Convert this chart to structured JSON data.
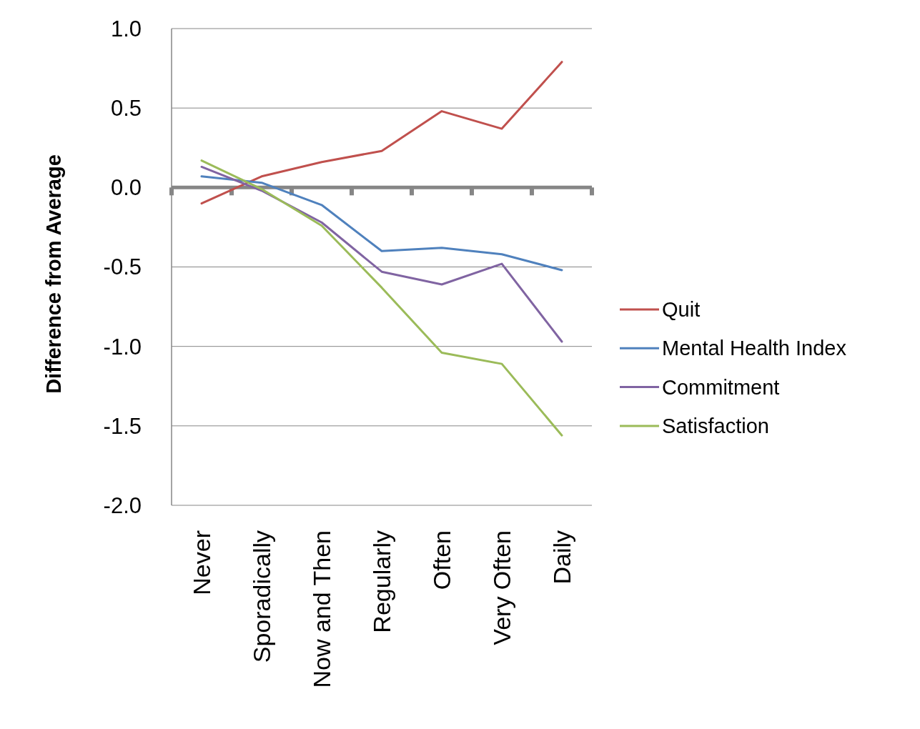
{
  "chart_data": {
    "type": "line",
    "ylabel": "Difference from Average",
    "categories": [
      "Never",
      "Sporadically",
      "Now and Then",
      "Regularly",
      "Often",
      "Very Often",
      "Daily"
    ],
    "series": [
      {
        "name": "Quit",
        "color": "#c0504d",
        "values": [
          -0.1,
          0.07,
          0.16,
          0.23,
          0.48,
          0.37,
          0.79
        ]
      },
      {
        "name": "Mental Health Index",
        "color": "#4f81bd",
        "values": [
          0.07,
          0.03,
          -0.11,
          -0.4,
          -0.38,
          -0.42,
          -0.52
        ]
      },
      {
        "name": "Commitment",
        "color": "#8064a2",
        "values": [
          0.13,
          -0.02,
          -0.22,
          -0.53,
          -0.61,
          -0.48,
          -0.97
        ]
      },
      {
        "name": "Satisfaction",
        "color": "#9bbb59",
        "values": [
          0.17,
          -0.01,
          -0.24,
          -0.63,
          -1.04,
          -1.11,
          -1.56
        ]
      }
    ],
    "ylim": [
      -2,
      1
    ],
    "yticks": [
      {
        "value": -2,
        "label": "-2.0"
      },
      {
        "value": -1.5,
        "label": "-1.5"
      },
      {
        "value": -1,
        "label": "-1.0"
      },
      {
        "value": -0.5,
        "label": "-0.5"
      },
      {
        "value": 0,
        "label": "0.0"
      },
      {
        "value": 0.5,
        "label": "0.5"
      },
      {
        "value": 1,
        "label": "1.0"
      }
    ],
    "grid": "y",
    "legend": "right",
    "marker": "none",
    "line_style": "solid"
  }
}
